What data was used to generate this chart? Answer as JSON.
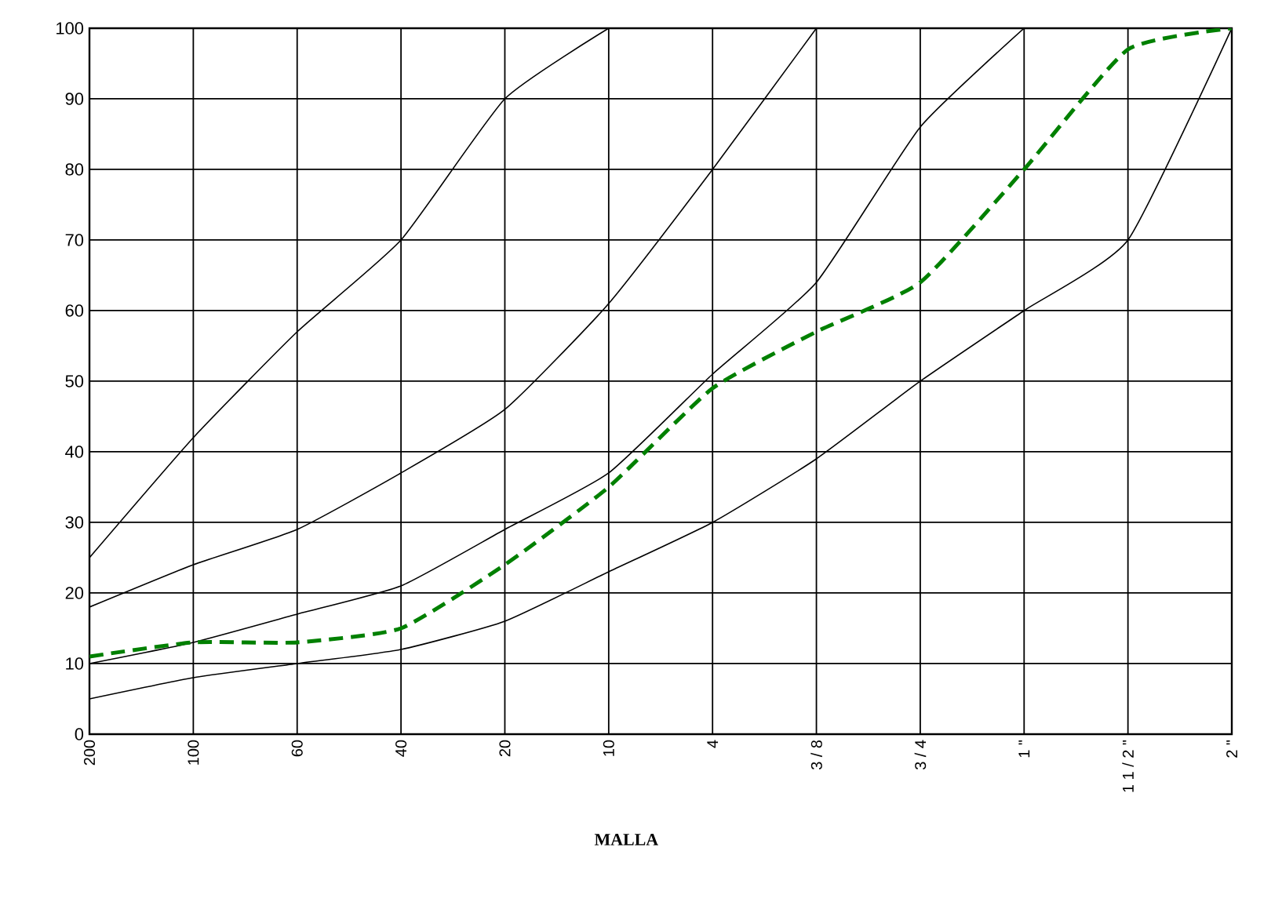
{
  "chart_data": {
    "type": "line",
    "xlabel": "**MALLA**",
    "grid": true,
    "marker": "none",
    "categories": [
      "200",
      "100",
      "60",
      "40",
      "20",
      "10",
      "4",
      "3 / 8",
      "3 / 4",
      "1 \"",
      "1 1 / 2 \"",
      "2 \""
    ],
    "ylim": [
      0,
      100
    ],
    "yticks": [
      0,
      10,
      20,
      30,
      40,
      50,
      60,
      70,
      80,
      90,
      100
    ],
    "series": [
      {
        "color": "#000000",
        "line_style": "solid",
        "values": [
          25,
          42,
          57,
          70,
          90,
          100,
          null,
          null,
          null,
          null,
          null,
          null
        ]
      },
      {
        "color": "#000000",
        "line_style": "solid",
        "values": [
          18,
          24,
          29,
          37,
          46,
          61,
          80,
          100,
          null,
          null,
          null,
          null
        ]
      },
      {
        "color": "#000000",
        "line_style": "solid",
        "values": [
          10,
          13,
          17,
          21,
          29,
          37,
          51,
          64,
          86,
          100,
          null,
          null
        ]
      },
      {
        "color": "#000000",
        "line_style": "solid",
        "values": [
          5,
          8,
          10,
          12,
          16,
          23,
          30,
          39,
          50,
          60,
          70,
          100
        ]
      },
      {
        "color": "#008000",
        "line_style": "dashed",
        "values": [
          11,
          13,
          13,
          15,
          24,
          35,
          49,
          57,
          64,
          80,
          97,
          100
        ]
      }
    ]
  }
}
